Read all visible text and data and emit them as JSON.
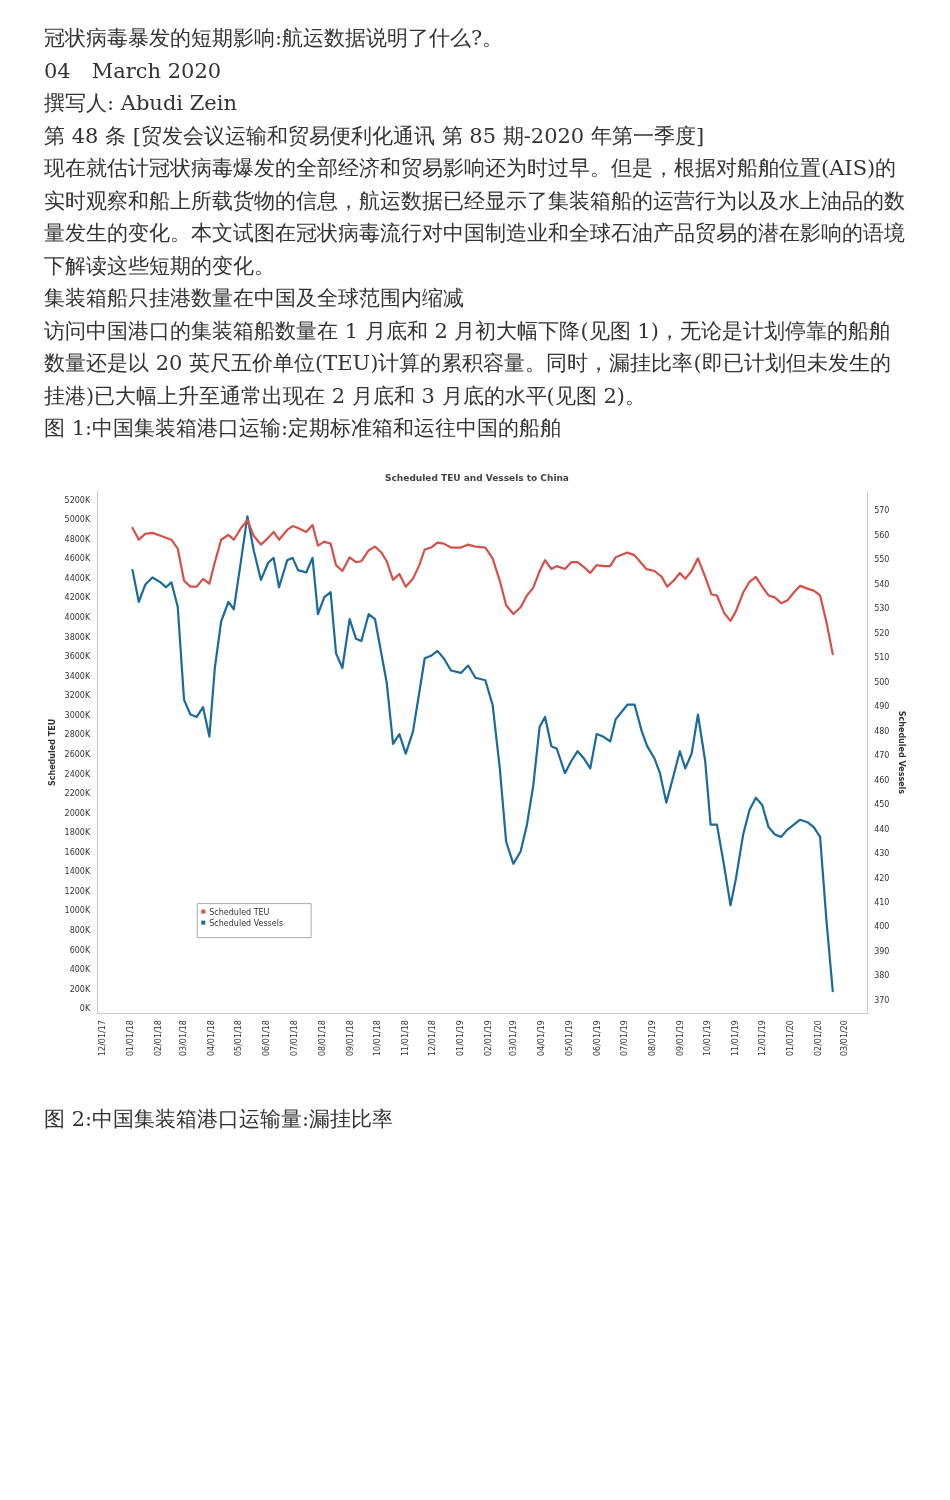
{
  "chart_data": {
    "type": "line",
    "title": "Scheduled TEU and Vessels to China",
    "ylabel": "Scheduled TEU",
    "y2label": "Scheduled Vessels",
    "annotations": [
      "冠状病毒暴发的短期影响:航运数据说明了什么?。",
      "04　March 2020",
      "撰写人: Abudi Zein",
      "第 48 条 [贸发会议运输和贸易便利化通讯 第 85 期-2020 年第一季度]",
      "现在就估计冠状病毒爆发的全部经济和贸易影响还为时过早。但是，根据对船舶位置(AIS)的实时观察和船上所载货物的信息，航运数据已经显示了集装箱船的运营行为以及水上油品的数量发生的变化。本文试图在冠状病毒流行对中国制造业和全球石油产品贸易的潜在影响的语境下解读这些短期的变化。",
      "集装箱船只挂港数量在中国及全球范围内缩减",
      "访问中国港口的集装箱船数量在 1 月底和 2 月初大幅下降(见图 1)，无论是计划停靠的船舶数量还是以 20 英尺五价单位(TEU)计算的累积容量。同时，漏挂比率(即已计划但未发生的挂港)已大幅上升至通常出现在 2 月底和 3 月底的水平(见图 2)。",
      "图 1:中国集装箱港口运输:定期标准箱和运往中国的船舶",
      "图 2:中国集装箱港口运输量:漏挂比率"
    ],
    "xlim": [
      "2017-11-25",
      "2020-03-25"
    ],
    "xticks": [
      {
        "value": "2017-12-01",
        "label": "12/01/17"
      },
      {
        "value": "2018-01-01",
        "label": "01/01/18"
      },
      {
        "value": "2018-02-01",
        "label": "02/01/18"
      },
      {
        "value": "2018-03-01",
        "label": "03/01/18"
      },
      {
        "value": "2018-04-01",
        "label": "04/01/18"
      },
      {
        "value": "2018-05-01",
        "label": "05/01/18"
      },
      {
        "value": "2018-06-01",
        "label": "06/01/18"
      },
      {
        "value": "2018-07-01",
        "label": "07/01/18"
      },
      {
        "value": "2018-08-01",
        "label": "08/01/18"
      },
      {
        "value": "2018-09-01",
        "label": "09/01/18"
      },
      {
        "value": "2018-10-01",
        "label": "10/01/18"
      },
      {
        "value": "2018-11-01",
        "label": "11/01/18"
      },
      {
        "value": "2018-12-01",
        "label": "12/01/18"
      },
      {
        "value": "2019-01-01",
        "label": "01/01/19"
      },
      {
        "value": "2019-02-01",
        "label": "02/01/19"
      },
      {
        "value": "2019-03-01",
        "label": "03/01/19"
      },
      {
        "value": "2019-04-01",
        "label": "04/01/19"
      },
      {
        "value": "2019-05-01",
        "label": "05/01/19"
      },
      {
        "value": "2019-06-01",
        "label": "06/01/19"
      },
      {
        "value": "2019-07-01",
        "label": "07/01/19"
      },
      {
        "value": "2019-08-01",
        "label": "08/01/19"
      },
      {
        "value": "2019-09-01",
        "label": "09/01/19"
      },
      {
        "value": "2019-10-01",
        "label": "10/01/19"
      },
      {
        "value": "2019-11-01",
        "label": "11/01/19"
      },
      {
        "value": "2019-12-01",
        "label": "12/01/19"
      },
      {
        "value": "2020-01-01",
        "label": "01/01/20"
      },
      {
        "value": "2020-02-01",
        "label": "02/01/20"
      },
      {
        "value": "2020-03-01",
        "label": "03/01/20"
      }
    ],
    "ylim": [
      -40,
      5290
    ],
    "yticks": [
      {
        "value": 0,
        "label": "0K"
      },
      {
        "value": 200,
        "label": "200K"
      },
      {
        "value": 400,
        "label": "400K"
      },
      {
        "value": 600,
        "label": "600K"
      },
      {
        "value": 800,
        "label": "800K"
      },
      {
        "value": 1000,
        "label": "1000K"
      },
      {
        "value": 1200,
        "label": "1200K"
      },
      {
        "value": 1400,
        "label": "1400K"
      },
      {
        "value": 1600,
        "label": "1600K"
      },
      {
        "value": 1800,
        "label": "1800K"
      },
      {
        "value": 2000,
        "label": "2000K"
      },
      {
        "value": 2200,
        "label": "2200K"
      },
      {
        "value": 2400,
        "label": "2400K"
      },
      {
        "value": 2600,
        "label": "2600K"
      },
      {
        "value": 2800,
        "label": "2800K"
      },
      {
        "value": 3000,
        "label": "3000K"
      },
      {
        "value": 3200,
        "label": "3200K"
      },
      {
        "value": 3400,
        "label": "3400K"
      },
      {
        "value": 3600,
        "label": "3600K"
      },
      {
        "value": 3800,
        "label": "3800K"
      },
      {
        "value": 4000,
        "label": "4000K"
      },
      {
        "value": 4200,
        "label": "4200K"
      },
      {
        "value": 4400,
        "label": "4400K"
      },
      {
        "value": 4600,
        "label": "4600K"
      },
      {
        "value": 4800,
        "label": "4800K"
      },
      {
        "value": 5000,
        "label": "5000K"
      },
      {
        "value": 5200,
        "label": "5200K"
      }
    ],
    "y2lim": [
      365,
      578
    ],
    "y2ticks": [
      370,
      380,
      390,
      400,
      410,
      420,
      430,
      440,
      450,
      460,
      470,
      480,
      490,
      500,
      510,
      520,
      530,
      540,
      550,
      560,
      570
    ],
    "legend": "bottom left",
    "marker": "none",
    "line_style": "solid",
    "series": [
      {
        "name": "Scheduled TEU",
        "color": "#d6504a",
        "x": [
          "2018-01-03",
          "2018-01-10",
          "2018-01-17",
          "2018-01-25",
          "2018-02-03",
          "2018-02-09",
          "2018-02-15",
          "2018-02-22",
          "2018-03-01",
          "2018-03-08",
          "2018-03-15",
          "2018-03-22",
          "2018-03-29",
          "2018-04-04",
          "2018-04-11",
          "2018-04-19",
          "2018-04-25",
          "2018-05-03",
          "2018-05-10",
          "2018-05-17",
          "2018-05-25",
          "2018-06-02",
          "2018-06-08",
          "2018-06-14",
          "2018-06-23",
          "2018-06-29",
          "2018-07-05",
          "2018-07-14",
          "2018-07-21",
          "2018-07-27",
          "2018-08-03",
          "2018-08-10",
          "2018-08-16",
          "2018-08-23",
          "2018-08-31",
          "2018-09-07",
          "2018-09-13",
          "2018-09-21",
          "2018-09-28",
          "2018-10-05",
          "2018-10-11",
          "2018-10-18",
          "2018-10-25",
          "2018-11-01",
          "2018-11-09",
          "2018-11-16",
          "2018-11-22",
          "2018-11-29",
          "2018-12-06",
          "2018-12-13",
          "2018-12-21",
          "2019-01-01",
          "2019-01-09",
          "2019-01-17",
          "2019-01-28",
          "2019-02-05",
          "2019-02-13",
          "2019-02-20",
          "2019-02-28",
          "2019-03-08",
          "2019-03-15",
          "2019-03-22",
          "2019-03-29",
          "2019-04-04",
          "2019-04-11",
          "2019-04-17",
          "2019-04-26",
          "2019-05-03",
          "2019-05-10",
          "2019-05-17",
          "2019-05-24",
          "2019-05-31",
          "2019-06-07",
          "2019-06-15",
          "2019-06-21",
          "2019-07-04",
          "2019-07-12",
          "2019-07-25",
          "2019-08-03",
          "2019-08-11",
          "2019-08-17",
          "2019-08-24",
          "2019-08-31",
          "2019-09-06",
          "2019-09-13",
          "2019-09-20",
          "2019-09-28",
          "2019-10-05",
          "2019-10-11",
          "2019-10-19",
          "2019-10-26",
          "2019-11-01",
          "2019-11-09",
          "2019-11-16",
          "2019-11-23",
          "2019-11-30",
          "2019-12-07",
          "2019-12-14",
          "2019-12-21",
          "2019-12-28",
          "2020-01-04",
          "2020-01-11",
          "2020-01-19",
          "2020-01-26",
          "2020-02-02",
          "2020-02-09",
          "2020-02-16"
        ],
        "values": [
          4920,
          4800,
          4860,
          4870,
          4840,
          4820,
          4800,
          4710,
          4380,
          4320,
          4320,
          4400,
          4350,
          4570,
          4800,
          4850,
          4800,
          4920,
          5000,
          4840,
          4750,
          4820,
          4880,
          4800,
          4900,
          4940,
          4920,
          4880,
          4950,
          4740,
          4780,
          4760,
          4540,
          4480,
          4620,
          4570,
          4580,
          4690,
          4730,
          4670,
          4580,
          4390,
          4450,
          4320,
          4400,
          4540,
          4700,
          4720,
          4770,
          4760,
          4720,
          4720,
          4750,
          4730,
          4720,
          4610,
          4380,
          4130,
          4040,
          4110,
          4230,
          4310,
          4480,
          4590,
          4500,
          4530,
          4500,
          4570,
          4570,
          4520,
          4460,
          4540,
          4530,
          4530,
          4620,
          4670,
          4640,
          4500,
          4480,
          4420,
          4320,
          4380,
          4460,
          4400,
          4480,
          4610,
          4420,
          4240,
          4230,
          4050,
          3970,
          4070,
          4260,
          4370,
          4420,
          4320,
          4230,
          4210,
          4150,
          4180,
          4260,
          4330,
          4300,
          4280,
          4230,
          3960,
          3630
        ]
      },
      {
        "name": "Scheduled Vessels",
        "color": "#1b6a9c",
        "axis": "y2",
        "x": [
          "2018-01-03",
          "2018-01-10",
          "2018-01-17",
          "2018-01-25",
          "2018-02-03",
          "2018-02-09",
          "2018-02-15",
          "2018-02-22",
          "2018-03-01",
          "2018-03-08",
          "2018-03-15",
          "2018-03-22",
          "2018-03-29",
          "2018-04-04",
          "2018-04-11",
          "2018-04-19",
          "2018-04-25",
          "2018-05-03",
          "2018-05-10",
          "2018-05-17",
          "2018-05-25",
          "2018-06-02",
          "2018-06-08",
          "2018-06-14",
          "2018-06-23",
          "2018-06-29",
          "2018-07-05",
          "2018-07-14",
          "2018-07-21",
          "2018-07-27",
          "2018-08-03",
          "2018-08-10",
          "2018-08-16",
          "2018-08-23",
          "2018-08-31",
          "2018-09-07",
          "2018-09-13",
          "2018-09-21",
          "2018-09-28",
          "2018-10-05",
          "2018-10-11",
          "2018-10-18",
          "2018-10-25",
          "2018-11-01",
          "2018-11-09",
          "2018-11-16",
          "2018-11-22",
          "2018-11-29",
          "2018-12-06",
          "2018-12-13",
          "2018-12-21",
          "2019-01-01",
          "2019-01-09",
          "2019-01-17",
          "2019-01-28",
          "2019-02-05",
          "2019-02-13",
          "2019-02-20",
          "2019-02-28",
          "2019-03-08",
          "2019-03-15",
          "2019-03-22",
          "2019-03-29",
          "2019-04-04",
          "2019-04-11",
          "2019-04-17",
          "2019-04-26",
          "2019-05-03",
          "2019-05-10",
          "2019-05-17",
          "2019-05-24",
          "2019-05-31",
          "2019-06-07",
          "2019-06-15",
          "2019-06-21",
          "2019-07-04",
          "2019-07-12",
          "2019-07-20",
          "2019-07-26",
          "2019-08-03",
          "2019-08-09",
          "2019-08-16",
          "2019-08-24",
          "2019-08-31",
          "2019-09-06",
          "2019-09-13",
          "2019-09-20",
          "2019-09-28",
          "2019-10-04",
          "2019-10-11",
          "2019-10-19",
          "2019-10-26",
          "2019-11-01",
          "2019-11-09",
          "2019-11-16",
          "2019-11-23",
          "2019-11-30",
          "2019-12-07",
          "2019-12-14",
          "2019-12-21",
          "2019-12-28",
          "2020-01-04",
          "2020-01-11",
          "2020-01-19",
          "2020-01-26",
          "2020-02-02",
          "2020-02-09",
          "2020-02-16"
        ],
        "values": [
          546,
          533,
          540,
          543,
          541,
          539,
          541,
          531,
          493,
          487,
          486,
          490,
          478,
          506,
          525,
          533,
          530,
          550,
          568,
          554,
          542,
          549,
          551,
          539,
          550,
          551,
          546,
          545,
          551,
          528,
          535,
          537,
          512,
          506,
          526,
          518,
          517,
          528,
          526,
          512,
          500,
          475,
          479,
          471,
          480,
          496,
          510,
          511,
          513,
          510,
          505,
          504,
          507,
          502,
          501,
          491,
          465,
          435,
          426,
          431,
          442,
          458,
          482,
          486,
          474,
          473,
          463,
          468,
          472,
          469,
          465,
          479,
          478,
          476,
          485,
          491,
          491,
          480,
          474,
          469,
          463,
          451,
          462,
          472,
          465,
          471,
          487,
          468,
          442,
          442,
          425,
          409,
          420,
          438,
          448,
          453,
          450,
          441,
          438,
          437,
          440,
          442,
          444,
          443,
          441,
          437,
          403,
          374
        ]
      }
    ]
  }
}
